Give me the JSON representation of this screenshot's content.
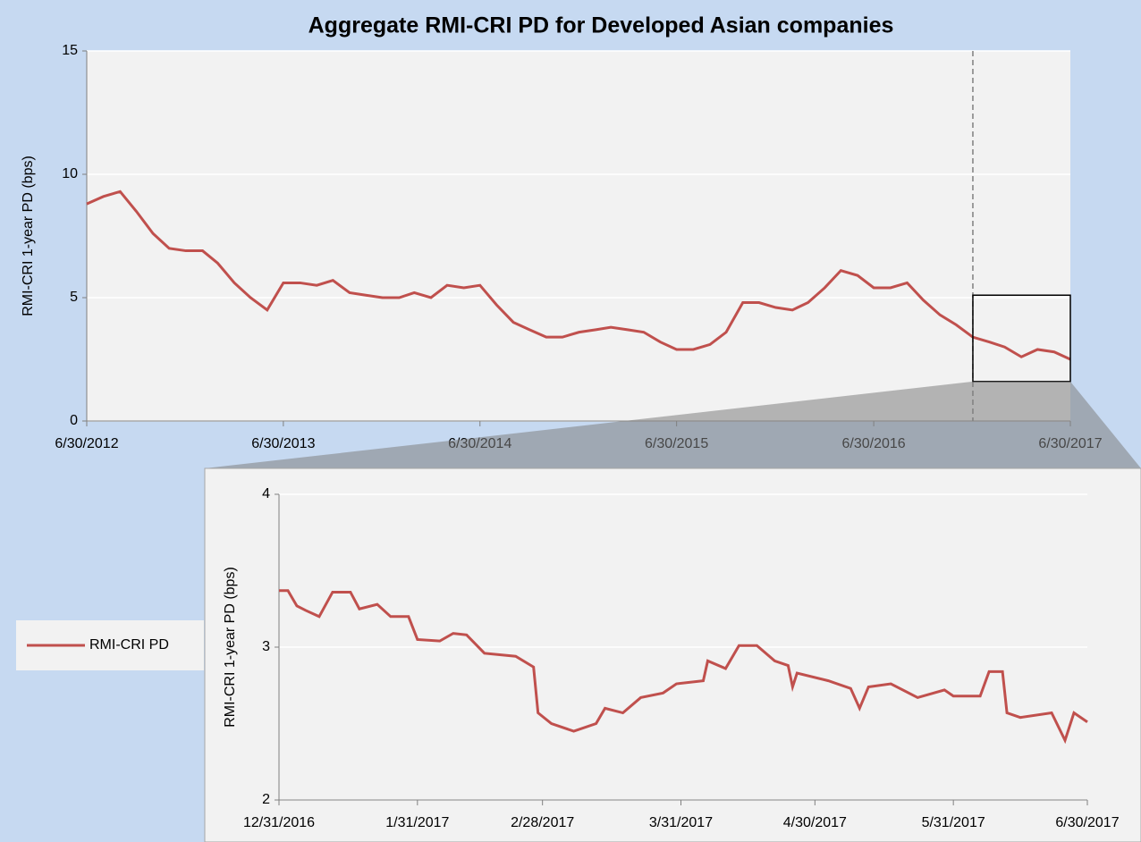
{
  "chart_data": [
    {
      "type": "line",
      "title": "Aggregate RMI-CRI PD for Developed Asian companies",
      "ylabel": "RMI-CRI  1-year PD (bps)",
      "x": [
        "6/30/2012",
        "7/31/2012",
        "8/31/2012",
        "9/30/2012",
        "10/31/2012",
        "11/30/2012",
        "12/31/2012",
        "1/31/2013",
        "2/28/2013",
        "3/31/2013",
        "4/30/2013",
        "5/31/2013",
        "6/30/2013",
        "7/31/2013",
        "8/31/2013",
        "9/30/2013",
        "10/31/2013",
        "11/30/2013",
        "12/31/2013",
        "1/31/2014",
        "2/28/2014",
        "3/31/2014",
        "4/30/2014",
        "5/31/2014",
        "6/30/2014",
        "7/31/2014",
        "8/31/2014",
        "9/30/2014",
        "10/31/2014",
        "11/30/2014",
        "12/31/2014",
        "1/31/2015",
        "2/28/2015",
        "3/31/2015",
        "4/30/2015",
        "5/31/2015",
        "6/30/2015",
        "7/31/2015",
        "8/31/2015",
        "9/30/2015",
        "10/31/2015",
        "11/30/2015",
        "12/31/2015",
        "1/31/2016",
        "2/29/2016",
        "3/31/2016",
        "4/30/2016",
        "5/31/2016",
        "6/30/2016",
        "7/31/2016",
        "8/31/2016",
        "9/30/2016",
        "10/31/2016",
        "11/30/2016",
        "12/31/2016",
        "1/31/2017",
        "2/28/2017",
        "3/31/2017",
        "4/30/2017",
        "5/31/2017",
        "6/30/2017"
      ],
      "series": [
        {
          "name": "RMI-CRI PD",
          "color": "#c0504d",
          "values": [
            8.8,
            9.1,
            9.3,
            8.5,
            7.6,
            7.0,
            6.9,
            6.9,
            6.4,
            5.6,
            5.0,
            4.5,
            5.6,
            5.6,
            5.5,
            5.7,
            5.2,
            5.1,
            5.0,
            5.0,
            5.2,
            5.0,
            5.5,
            5.4,
            5.5,
            4.7,
            4.0,
            3.7,
            3.4,
            3.4,
            3.6,
            3.7,
            3.8,
            3.7,
            3.6,
            3.2,
            2.9,
            2.9,
            3.1,
            3.6,
            4.8,
            4.8,
            4.6,
            4.5,
            4.8,
            5.4,
            6.1,
            5.9,
            5.4,
            5.4,
            5.6,
            4.9,
            4.3,
            3.9,
            3.4,
            3.2,
            3.0,
            2.6,
            2.9,
            2.8,
            2.5
          ]
        }
      ],
      "xlim": [
        "6/30/2012",
        "6/30/2017"
      ],
      "xticks": [
        "6/30/2012",
        "6/30/2013",
        "6/30/2014",
        "6/30/2015",
        "6/30/2016",
        "6/30/2017"
      ],
      "ylim": [
        0,
        15
      ],
      "yticks": [
        0,
        5,
        10,
        15
      ],
      "grid": true,
      "legend": "left",
      "zoom_ylim": [
        1.6,
        5.1
      ]
    },
    {
      "type": "line",
      "ylabel": "RMI-CRI  1-year PD (bps)",
      "x": [
        "12/31/2016",
        "1/2/2017",
        "1/4/2017",
        "1/6/2017",
        "1/9/2017",
        "1/12/2017",
        "1/16/2017",
        "1/18/2017",
        "1/22/2017",
        "1/25/2017",
        "1/29/2017",
        "1/31/2017",
        "2/5/2017",
        "2/8/2017",
        "2/11/2017",
        "2/15/2017",
        "2/22/2017",
        "2/26/2017",
        "2/27/2017",
        "3/2/2017",
        "3/7/2017",
        "3/12/2017",
        "3/14/2017",
        "3/18/2017",
        "3/22/2017",
        "3/27/2017",
        "3/30/2017",
        "4/5/2017",
        "4/6/2017",
        "4/10/2017",
        "4/13/2017",
        "4/17/2017",
        "4/21/2017",
        "4/24/2017",
        "4/25/2017",
        "4/26/2017",
        "5/3/2017",
        "5/8/2017",
        "5/10/2017",
        "5/12/2017",
        "5/17/2017",
        "5/23/2017",
        "5/29/2017",
        "5/31/2017",
        "6/6/2017",
        "6/8/2017",
        "6/11/2017",
        "6/12/2017",
        "6/15/2017",
        "6/22/2017",
        "6/25/2017",
        "6/27/2017",
        "6/30/2017"
      ],
      "series": [
        {
          "color": "#c0504d",
          "values": [
            3.37,
            3.37,
            3.27,
            3.24,
            3.2,
            3.36,
            3.36,
            3.25,
            3.28,
            3.2,
            3.2,
            3.05,
            3.04,
            3.09,
            3.08,
            2.96,
            2.94,
            2.87,
            2.57,
            2.5,
            2.45,
            2.5,
            2.6,
            2.57,
            2.67,
            2.7,
            2.76,
            2.78,
            2.91,
            2.86,
            3.01,
            3.01,
            2.91,
            2.88,
            2.74,
            2.83,
            2.78,
            2.73,
            2.6,
            2.74,
            2.76,
            2.67,
            2.72,
            2.68,
            2.68,
            2.84,
            2.84,
            2.57,
            2.54,
            2.57,
            2.39,
            2.57,
            2.51
          ]
        }
      ],
      "xlim": [
        "12/31/2016",
        "6/30/2017"
      ],
      "xticks": [
        "12/31/2016",
        "1/31/2017",
        "2/28/2017",
        "3/31/2017",
        "4/30/2017",
        "5/31/2017",
        "6/30/2017"
      ],
      "ylim": [
        2,
        4
      ],
      "yticks": [
        2,
        3,
        4
      ],
      "grid": true
    }
  ]
}
